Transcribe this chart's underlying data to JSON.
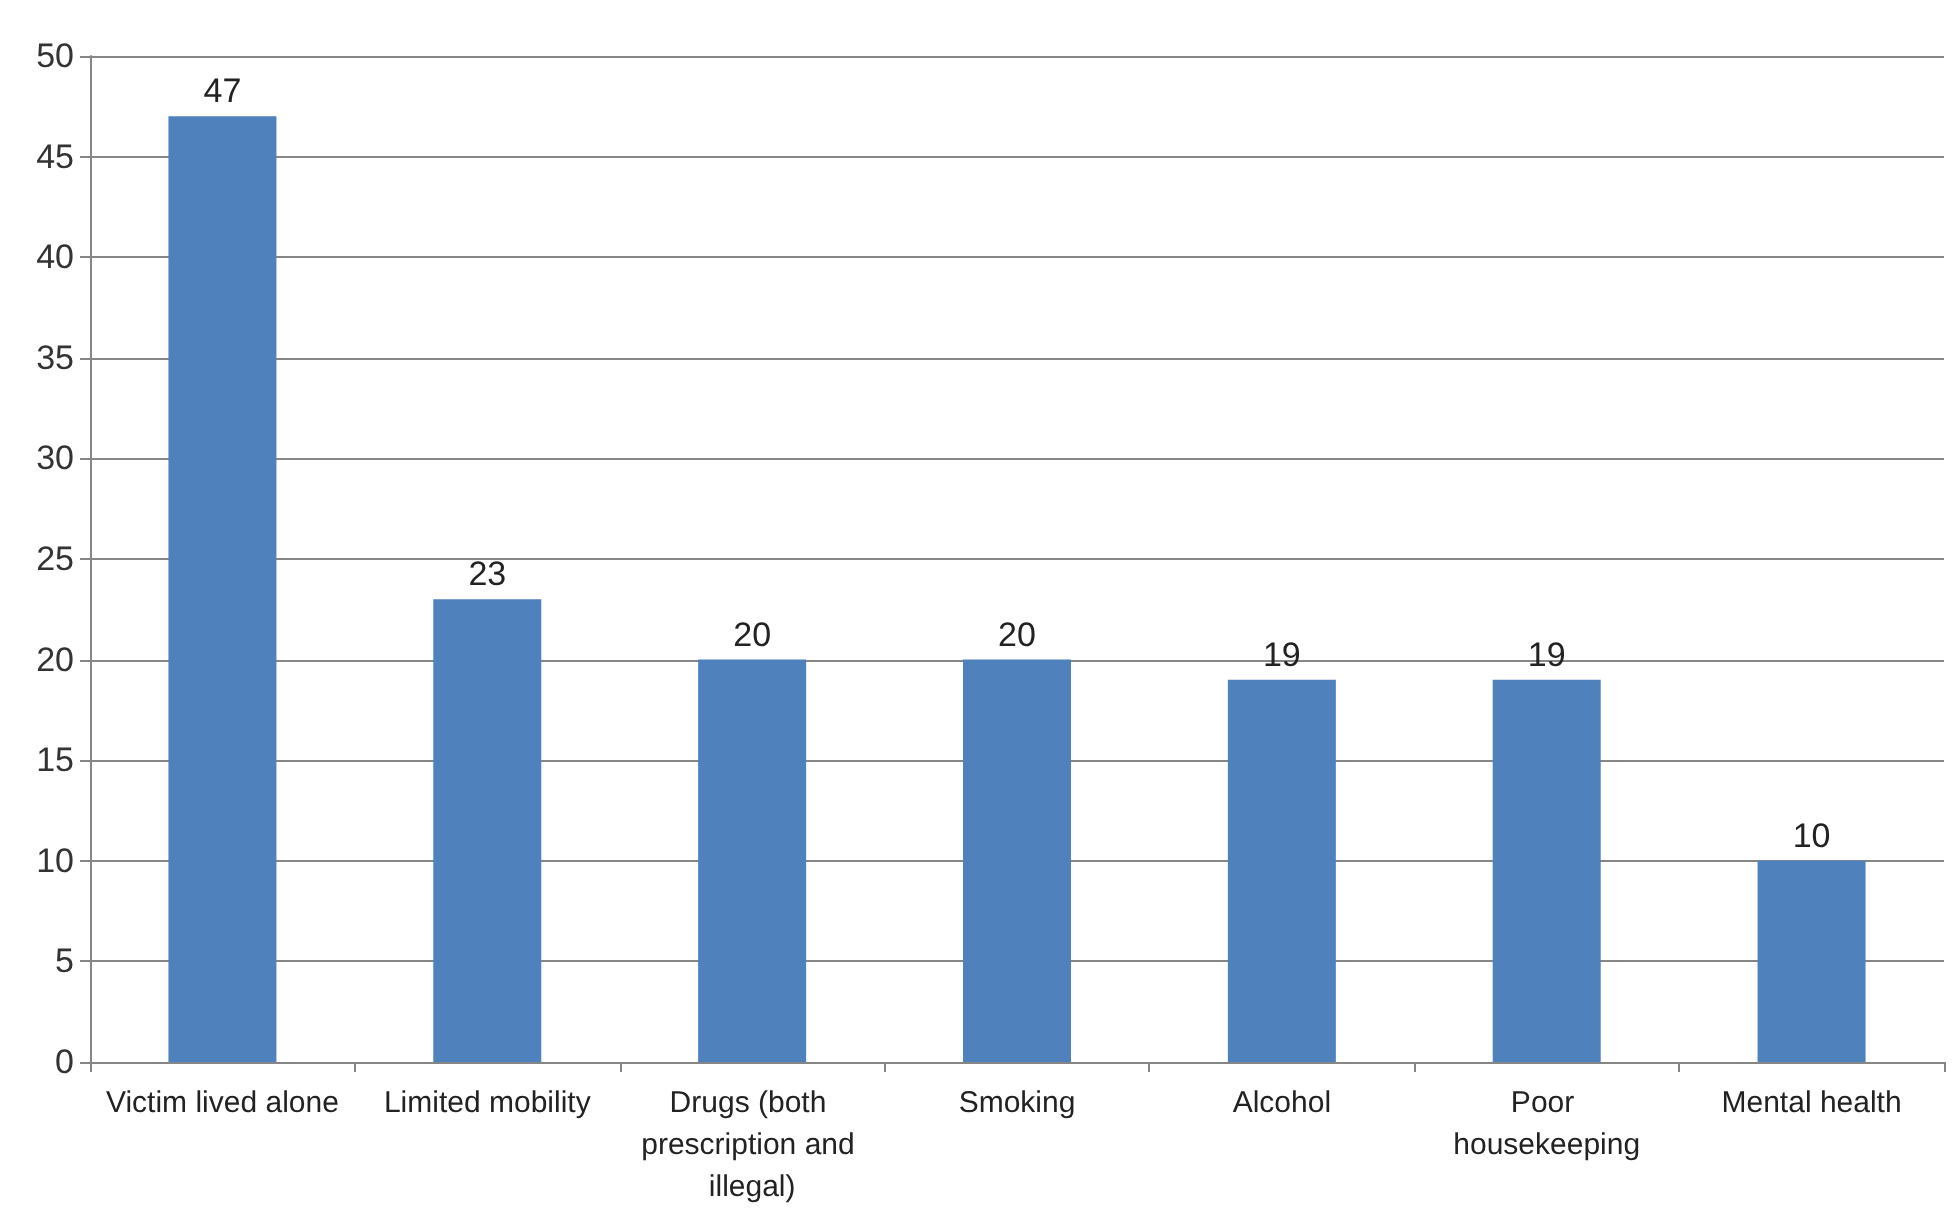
{
  "chart_data": {
    "type": "bar",
    "categories": [
      "Victim lived alone",
      "Limited mobility",
      "Drugs (both prescription and illegal)",
      "Smoking",
      "Alcohol",
      "Poor housekeeping",
      "Mental health"
    ],
    "values": [
      47,
      23,
      20,
      20,
      19,
      19,
      10
    ],
    "color": "#4f81bd",
    "ylim": [
      0,
      50
    ],
    "yticks": [
      0,
      5,
      10,
      15,
      20,
      25,
      30,
      35,
      40,
      45,
      50
    ],
    "grid": "y",
    "data_labels": true
  }
}
